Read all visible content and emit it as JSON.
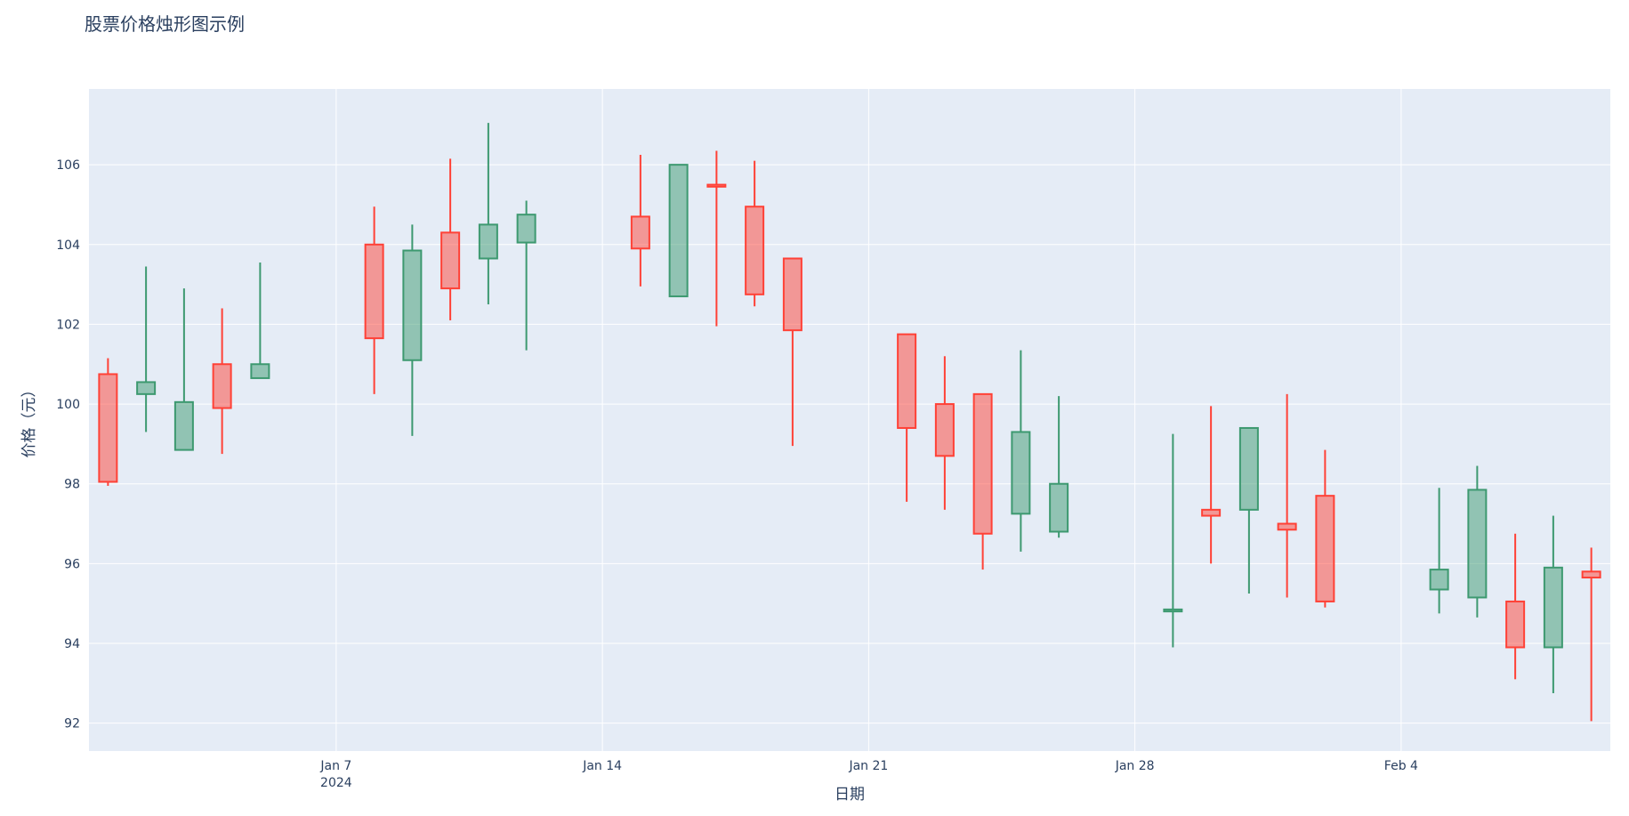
{
  "chart_data": {
    "type": "candlestick",
    "title": "股票价格烛形图示例",
    "xlabel": "日期",
    "ylabel": "价格（元）",
    "xlim": [
      "2024-01-01",
      "2024-02-08"
    ],
    "ylim": [
      91.3,
      107.9
    ],
    "y_ticks": [
      92,
      94,
      96,
      98,
      100,
      102,
      104,
      106
    ],
    "x_ticks": [
      {
        "date": "2024-01-07",
        "label": "Jan 7",
        "sublabel": "2024"
      },
      {
        "date": "2024-01-14",
        "label": "Jan 14",
        "sublabel": ""
      },
      {
        "date": "2024-01-21",
        "label": "Jan 21",
        "sublabel": ""
      },
      {
        "date": "2024-01-28",
        "label": "Jan 28",
        "sublabel": ""
      },
      {
        "date": "2024-02-04",
        "label": "Feb 4",
        "sublabel": ""
      }
    ],
    "grid": true,
    "increasing_color": "#3d9970",
    "decreasing_color": "#ff4136",
    "plot_bg": "#e5ecf6",
    "candles": [
      {
        "date": "2024-01-01",
        "open": 100.75,
        "high": 101.15,
        "low": 97.95,
        "close": 98.05
      },
      {
        "date": "2024-01-02",
        "open": 100.25,
        "high": 103.45,
        "low": 99.3,
        "close": 100.55
      },
      {
        "date": "2024-01-03",
        "open": 98.85,
        "high": 102.9,
        "low": 98.85,
        "close": 100.05
      },
      {
        "date": "2024-01-04",
        "open": 101.0,
        "high": 102.4,
        "low": 98.75,
        "close": 99.9
      },
      {
        "date": "2024-01-05",
        "open": 100.65,
        "high": 103.55,
        "low": 100.65,
        "close": 101.0
      },
      {
        "date": "2024-01-08",
        "open": 104.0,
        "high": 104.95,
        "low": 100.25,
        "close": 101.65
      },
      {
        "date": "2024-01-09",
        "open": 101.1,
        "high": 104.5,
        "low": 99.2,
        "close": 103.85
      },
      {
        "date": "2024-01-10",
        "open": 104.3,
        "high": 106.15,
        "low": 102.1,
        "close": 102.9
      },
      {
        "date": "2024-01-11",
        "open": 103.65,
        "high": 107.05,
        "low": 102.5,
        "close": 104.5
      },
      {
        "date": "2024-01-12",
        "open": 104.05,
        "high": 105.1,
        "low": 101.35,
        "close": 104.75
      },
      {
        "date": "2024-01-15",
        "open": 104.7,
        "high": 106.25,
        "low": 102.95,
        "close": 103.9
      },
      {
        "date": "2024-01-16",
        "open": 102.7,
        "high": 106.0,
        "low": 102.7,
        "close": 106.0
      },
      {
        "date": "2024-01-17",
        "open": 105.5,
        "high": 106.35,
        "low": 101.95,
        "close": 105.45
      },
      {
        "date": "2024-01-18",
        "open": 104.95,
        "high": 106.1,
        "low": 102.45,
        "close": 102.75
      },
      {
        "date": "2024-01-19",
        "open": 103.65,
        "high": 103.65,
        "low": 98.95,
        "close": 101.85
      },
      {
        "date": "2024-01-22",
        "open": 101.75,
        "high": 101.75,
        "low": 97.55,
        "close": 99.4
      },
      {
        "date": "2024-01-23",
        "open": 100.0,
        "high": 101.2,
        "low": 97.35,
        "close": 98.7
      },
      {
        "date": "2024-01-24",
        "open": 100.25,
        "high": 100.25,
        "low": 95.85,
        "close": 96.75
      },
      {
        "date": "2024-01-25",
        "open": 97.25,
        "high": 101.35,
        "low": 96.3,
        "close": 99.3
      },
      {
        "date": "2024-01-26",
        "open": 96.8,
        "high": 100.2,
        "low": 96.65,
        "close": 98.0
      },
      {
        "date": "2024-01-29",
        "open": 94.8,
        "high": 99.25,
        "low": 93.9,
        "close": 94.85
      },
      {
        "date": "2024-01-30",
        "open": 97.35,
        "high": 99.95,
        "low": 96.0,
        "close": 97.2
      },
      {
        "date": "2024-01-31",
        "open": 97.35,
        "high": 99.4,
        "low": 95.25,
        "close": 99.4
      },
      {
        "date": "2024-02-01",
        "open": 97.0,
        "high": 100.25,
        "low": 95.15,
        "close": 96.85
      },
      {
        "date": "2024-02-02",
        "open": 97.7,
        "high": 98.85,
        "low": 94.9,
        "close": 95.05
      },
      {
        "date": "2024-02-05",
        "open": 95.35,
        "high": 97.9,
        "low": 94.75,
        "close": 95.85
      },
      {
        "date": "2024-02-06",
        "open": 95.15,
        "high": 98.45,
        "low": 94.65,
        "close": 97.85
      },
      {
        "date": "2024-02-07",
        "open": 95.05,
        "high": 96.75,
        "low": 93.1,
        "close": 93.9
      },
      {
        "date": "2024-02-08",
        "open": 93.9,
        "high": 97.2,
        "low": 92.75,
        "close": 95.9
      },
      {
        "date": "2024-02-09",
        "open": 95.8,
        "high": 96.4,
        "low": 92.05,
        "close": 95.65
      }
    ]
  }
}
